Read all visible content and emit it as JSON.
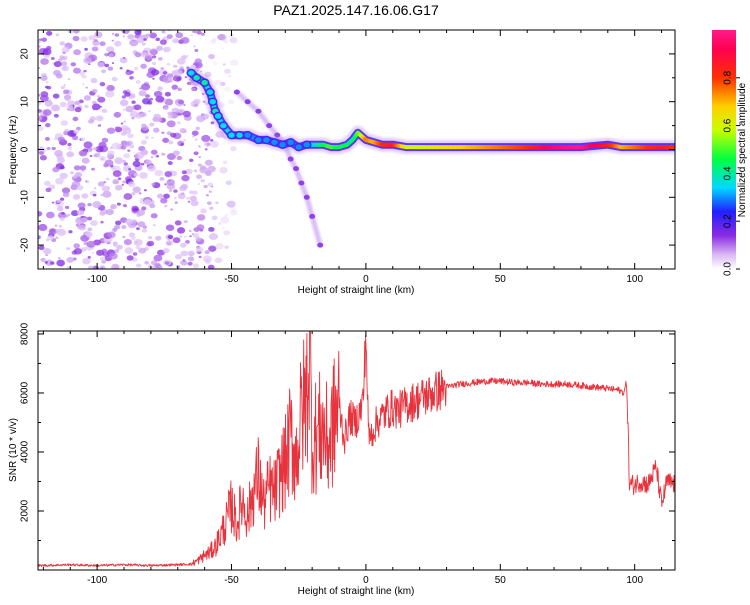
{
  "title": "PAZ1.2025.147.16.06.G17",
  "colors": {
    "spectrogram_colorscale": [
      "#e8d8f8",
      "#c7a2f3",
      "#8a2be2",
      "#2020ff",
      "#00ffff",
      "#00ff00",
      "#ffff00",
      "#ff7f00",
      "#ff0000",
      "#ff1a8c"
    ],
    "snr_line": "#e8323c"
  },
  "chart_data": [
    {
      "type": "heatmap",
      "title": "",
      "xlabel": "Height of straight line (km)",
      "ylabel": "Frequency (Hz)",
      "xlim": [
        -122,
        115
      ],
      "ylim": [
        -25,
        25
      ],
      "xticks": [
        -100,
        -50,
        0,
        50,
        100
      ],
      "yticks": [
        -20,
        -10,
        0,
        10,
        20
      ],
      "colorbar": {
        "label": "Normalized spectral amplitude",
        "range": [
          0,
          1
        ],
        "ticks": [
          0.0,
          0.2,
          0.4,
          0.6,
          0.8
        ]
      },
      "ridge": {
        "x": [
          -65,
          -63,
          -60,
          -58,
          -57,
          -56,
          -55,
          -53,
          -50,
          -47,
          -44,
          -40,
          -37,
          -34,
          -31,
          -28,
          -25,
          -22,
          -19,
          -16,
          -13,
          -10,
          -7,
          -5,
          -3,
          -2,
          0,
          3,
          6,
          10,
          15,
          20,
          30,
          40,
          50,
          60,
          70,
          80,
          90,
          95,
          100,
          105,
          110,
          115
        ],
        "y": [
          16,
          15,
          14,
          12,
          10,
          8,
          7,
          5,
          3,
          3,
          3,
          2,
          2,
          1.5,
          1,
          1.5,
          0.5,
          1,
          1,
          1,
          0.5,
          0.5,
          1,
          2,
          3.5,
          3,
          2,
          1.5,
          1,
          1,
          0.5,
          0.5,
          0.5,
          0.5,
          0.5,
          0.5,
          0.5,
          0.5,
          1,
          0.5,
          0.5,
          0.5,
          0.5,
          0.5
        ],
        "amplitude": [
          0.35,
          0.4,
          0.4,
          0.35,
          0.35,
          0.4,
          0.35,
          0.35,
          0.35,
          0.35,
          0.3,
          0.3,
          0.3,
          0.3,
          0.3,
          0.3,
          0.3,
          0.3,
          0.35,
          0.45,
          0.5,
          0.45,
          0.45,
          0.4,
          0.5,
          0.55,
          0.75,
          0.7,
          0.8,
          0.85,
          0.6,
          0.6,
          0.65,
          0.7,
          0.75,
          0.8,
          0.95,
          1.0,
          0.85,
          0.7,
          0.75,
          0.8,
          0.85,
          0.8
        ]
      },
      "branch": {
        "x": [
          -48,
          -44,
          -40,
          -36,
          -33,
          -30,
          -28,
          -26,
          -24,
          -22,
          -20,
          -17
        ],
        "y": [
          12,
          10,
          8,
          5,
          3,
          1,
          -2,
          -4,
          -7,
          -10,
          -14,
          -20
        ]
      },
      "noise_region_x": [
        -122,
        -57
      ]
    },
    {
      "type": "line",
      "title": "",
      "xlabel": "Height of straight line (km)",
      "ylabel": "SNR (10 * v/v)",
      "xlim": [
        -122,
        115
      ],
      "ylim": [
        0,
        8100
      ],
      "xticks": [
        -100,
        -50,
        0,
        50,
        100
      ],
      "yticks": [
        2000,
        4000,
        6000,
        8000
      ],
      "series": [
        {
          "x": [
            -122,
            -110,
            -100,
            -90,
            -80,
            -70,
            -65,
            -62,
            -60,
            -58,
            -56,
            -54,
            -52,
            -50,
            -48,
            -46,
            -44,
            -42,
            -40,
            -38,
            -36,
            -34,
            -32,
            -30,
            -28,
            -26,
            -24,
            -22,
            -21,
            -20,
            -18,
            -16,
            -14,
            -12,
            -10,
            -8,
            -6,
            -4,
            -2,
            -1,
            0,
            1,
            2,
            4,
            6,
            8,
            10,
            12,
            15,
            20,
            25,
            30,
            35,
            40,
            45,
            50,
            55,
            60,
            65,
            70,
            75,
            80,
            85,
            90,
            94,
            96,
            97,
            97.5,
            98,
            100,
            102,
            105,
            108,
            110,
            112,
            115
          ],
          "y": [
            150,
            180,
            150,
            180,
            150,
            180,
            200,
            350,
            500,
            600,
            800,
            1200,
            1600,
            2200,
            1500,
            2400,
            1800,
            2600,
            3200,
            2200,
            2800,
            2600,
            3200,
            3600,
            4500,
            3800,
            5200,
            6000,
            7600,
            4400,
            4600,
            4800,
            4200,
            5000,
            5600,
            4400,
            5200,
            5000,
            5400,
            5800,
            8050,
            4500,
            4600,
            5000,
            5200,
            5400,
            5500,
            5400,
            5600,
            5800,
            6000,
            6200,
            6300,
            6350,
            6400,
            6400,
            6350,
            6350,
            6300,
            6300,
            6300,
            6250,
            6200,
            6150,
            6100,
            6000,
            6400,
            5000,
            2900,
            2900,
            3000,
            2900,
            3500,
            2200,
            3000,
            2900
          ]
        }
      ]
    }
  ]
}
